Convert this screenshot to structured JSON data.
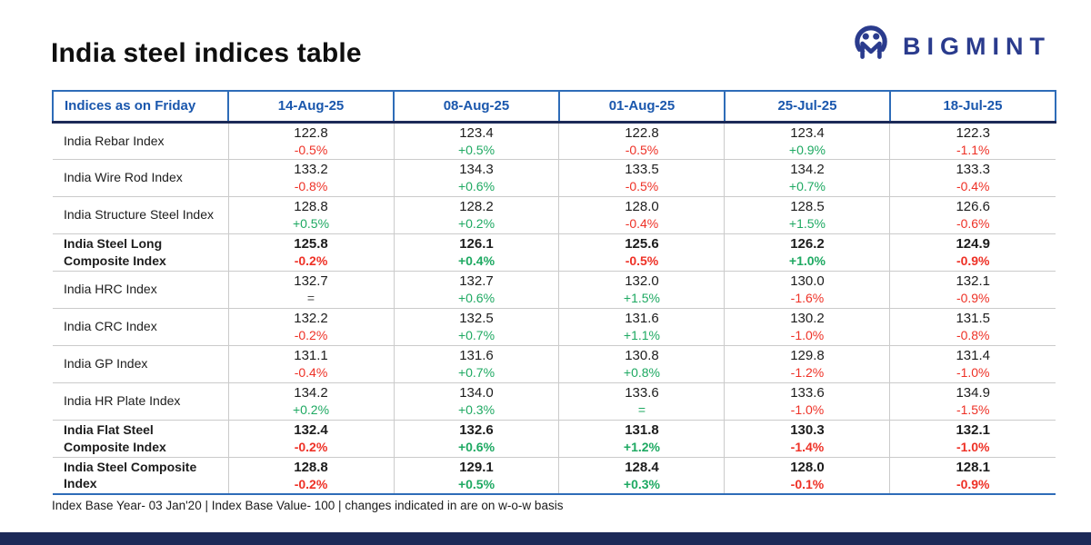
{
  "header": {
    "title": "India steel indices table",
    "brand": "BIGMINT"
  },
  "footnote": "Index Base Year- 03 Jan'20 | Index Base Value- 100 | changes indicated in are on w-o-w basis",
  "colors": {
    "header_blue": "#1a57ad",
    "blue_border": "#2e6cb8",
    "navy": "#1c2a58",
    "brand_navy": "#2a3b8d",
    "positive": "#1ea962",
    "negative": "#ee3126",
    "neutral": "#4a4a4a",
    "grid_gray": "#cbcbcb",
    "text_dark": "#1d1d1d"
  },
  "chart_data": {
    "type": "table",
    "columns": [
      "Indices as on Friday",
      "14-Aug-25",
      "08-Aug-25",
      "01-Aug-25",
      "25-Jul-25",
      "18-Jul-25"
    ],
    "rows": [
      {
        "label": "India Rebar Index",
        "bold": false,
        "cells": [
          {
            "value": "122.8",
            "change": "-0.5%",
            "trend": "neg"
          },
          {
            "value": "123.4",
            "change": "+0.5%",
            "trend": "pos"
          },
          {
            "value": "122.8",
            "change": "-0.5%",
            "trend": "neg"
          },
          {
            "value": "123.4",
            "change": "+0.9%",
            "trend": "pos"
          },
          {
            "value": "122.3",
            "change": "-1.1%",
            "trend": "neg"
          }
        ]
      },
      {
        "label": "India Wire Rod Index",
        "bold": false,
        "cells": [
          {
            "value": "133.2",
            "change": "-0.8%",
            "trend": "neg"
          },
          {
            "value": "134.3",
            "change": "+0.6%",
            "trend": "pos"
          },
          {
            "value": "133.5",
            "change": "-0.5%",
            "trend": "neg"
          },
          {
            "value": "134.2",
            "change": "+0.7%",
            "trend": "pos"
          },
          {
            "value": "133.3",
            "change": "-0.4%",
            "trend": "neg"
          }
        ]
      },
      {
        "label": "India Structure Steel Index",
        "bold": false,
        "cells": [
          {
            "value": "128.8",
            "change": "+0.5%",
            "trend": "pos"
          },
          {
            "value": "128.2",
            "change": "+0.2%",
            "trend": "pos"
          },
          {
            "value": "128.0",
            "change": "-0.4%",
            "trend": "neg"
          },
          {
            "value": "128.5",
            "change": "+1.5%",
            "trend": "pos"
          },
          {
            "value": "126.6",
            "change": "-0.6%",
            "trend": "neg"
          }
        ]
      },
      {
        "label": "India Steel Long Composite Index",
        "bold": true,
        "cells": [
          {
            "value": "125.8",
            "change": "-0.2%",
            "trend": "neg"
          },
          {
            "value": "126.1",
            "change": "+0.4%",
            "trend": "pos"
          },
          {
            "value": "125.6",
            "change": "-0.5%",
            "trend": "neg"
          },
          {
            "value": "126.2",
            "change": "+1.0%",
            "trend": "pos"
          },
          {
            "value": "124.9",
            "change": "-0.9%",
            "trend": "neg"
          }
        ]
      },
      {
        "label": "India HRC Index",
        "bold": false,
        "cells": [
          {
            "value": "132.7",
            "change": "=",
            "trend": "neutral"
          },
          {
            "value": "132.7",
            "change": "+0.6%",
            "trend": "pos"
          },
          {
            "value": "132.0",
            "change": "+1.5%",
            "trend": "pos"
          },
          {
            "value": "130.0",
            "change": "-1.6%",
            "trend": "neg"
          },
          {
            "value": "132.1",
            "change": "-0.9%",
            "trend": "neg"
          }
        ]
      },
      {
        "label": "India CRC Index",
        "bold": false,
        "cells": [
          {
            "value": "132.2",
            "change": "-0.2%",
            "trend": "neg"
          },
          {
            "value": "132.5",
            "change": "+0.7%",
            "trend": "pos"
          },
          {
            "value": "131.6",
            "change": "+1.1%",
            "trend": "pos"
          },
          {
            "value": "130.2",
            "change": "-1.0%",
            "trend": "neg"
          },
          {
            "value": "131.5",
            "change": "-0.8%",
            "trend": "neg"
          }
        ]
      },
      {
        "label": "India GP Index",
        "bold": false,
        "cells": [
          {
            "value": "131.1",
            "change": "-0.4%",
            "trend": "neg"
          },
          {
            "value": "131.6",
            "change": "+0.7%",
            "trend": "pos"
          },
          {
            "value": "130.8",
            "change": "+0.8%",
            "trend": "pos"
          },
          {
            "value": "129.8",
            "change": "-1.2%",
            "trend": "neg"
          },
          {
            "value": "131.4",
            "change": "-1.0%",
            "trend": "neg"
          }
        ]
      },
      {
        "label": "India HR Plate Index",
        "bold": false,
        "cells": [
          {
            "value": "134.2",
            "change": "+0.2%",
            "trend": "pos"
          },
          {
            "value": "134.0",
            "change": "+0.3%",
            "trend": "pos"
          },
          {
            "value": "133.6",
            "change": "=",
            "trend": "pos"
          },
          {
            "value": "133.6",
            "change": "-1.0%",
            "trend": "neg"
          },
          {
            "value": "134.9",
            "change": "-1.5%",
            "trend": "neg"
          }
        ]
      },
      {
        "label": "India Flat Steel Composite Index",
        "bold": true,
        "cells": [
          {
            "value": "132.4",
            "change": "-0.2%",
            "trend": "neg"
          },
          {
            "value": "132.6",
            "change": "+0.6%",
            "trend": "pos"
          },
          {
            "value": "131.8",
            "change": "+1.2%",
            "trend": "pos"
          },
          {
            "value": "130.3",
            "change": "-1.4%",
            "trend": "neg"
          },
          {
            "value": "132.1",
            "change": "-1.0%",
            "trend": "neg"
          }
        ]
      },
      {
        "label": "India Steel Composite Index",
        "bold": true,
        "cells": [
          {
            "value": "128.8",
            "change": "-0.2%",
            "trend": "neg"
          },
          {
            "value": "129.1",
            "change": "+0.5%",
            "trend": "pos"
          },
          {
            "value": "128.4",
            "change": "+0.3%",
            "trend": "pos"
          },
          {
            "value": "128.0",
            "change": "-0.1%",
            "trend": "neg"
          },
          {
            "value": "128.1",
            "change": "-0.9%",
            "trend": "neg"
          }
        ]
      }
    ]
  }
}
